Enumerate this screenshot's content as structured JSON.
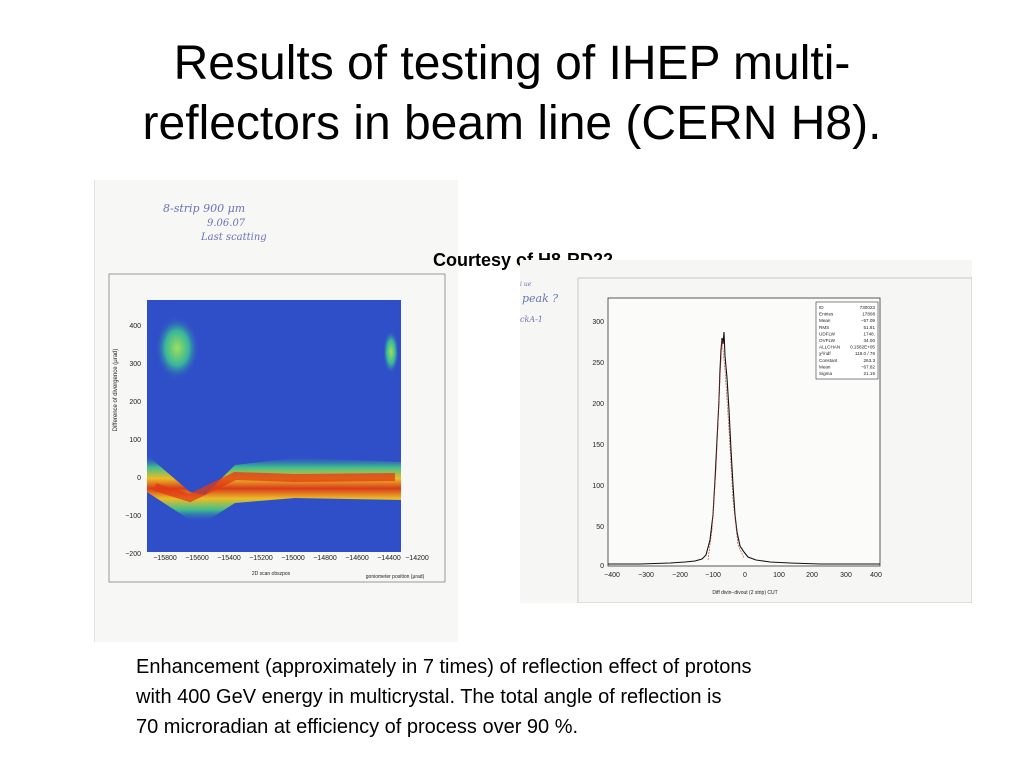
{
  "slide": {
    "title_line1": "Results of testing of IHEP multi-",
    "title_line2": "reflectors in beam line (CERN H8).",
    "courtesy": "Courtesy of H8-RD22",
    "caption_line1": "Enhancement (approximately in 7 times) of reflection effect of protons",
    "caption_line2": "with 400 GeV energy in multicrystal. The  total angle  of reflection is",
    "caption_line3": "70 microradian  at efficiency of process over 90 %."
  },
  "scan_left": {
    "note_line1": "8-strip      900 μm",
    "note_line2": "9.06.07",
    "note_line3": "Last scatting",
    "ylabel": "Difference of divergence (μrad)",
    "xlabel_left": "2D scan obszpos",
    "xlabel_right": "goniometer position (μrad)",
    "y_ticks": [
      "400",
      "300",
      "200",
      "100",
      "0",
      "−100",
      "−200"
    ],
    "x_ticks": [
      "−15800",
      "−15600",
      "−15400",
      "−15200",
      "−15000",
      "−14800",
      "−14600",
      "−14400",
      "−14200"
    ]
  },
  "scan_right": {
    "note_peak": "peak ?",
    "note_top": "i ue",
    "note_mid": "ckA-1",
    "xlabel": "Diff divin−divout (2 strip) CUT",
    "y_ticks": [
      "300",
      "250",
      "200",
      "150",
      "100",
      "50",
      "0"
    ],
    "x_ticks": [
      "−400",
      "−300",
      "−200",
      "−100",
      "0",
      "100",
      "200",
      "300",
      "400"
    ],
    "stats": [
      [
        "ID",
        "730023"
      ],
      [
        "Entries",
        "17808"
      ],
      [
        "Mean",
        "−57.09"
      ],
      [
        "RMS",
        "51.81"
      ],
      [
        "UDFLW",
        "1748."
      ],
      [
        "OVFLW",
        "34.00"
      ],
      [
        "ALLCHAN",
        "0.1582E+05"
      ],
      [
        "χ²/ndf",
        "118.0  /  76"
      ],
      [
        "Constant",
        "263.3"
      ],
      [
        "Mean",
        "−67.82"
      ],
      [
        "Sigma",
        "21.15"
      ]
    ]
  },
  "colors": {
    "heatmap_bg": "#2f4fc8",
    "band_core": "#e23a14",
    "band_mid": "#f6c21c",
    "band_outer": "#3ec48a",
    "histogram_line": "#111111",
    "handwriting": "#6a74b8"
  }
}
